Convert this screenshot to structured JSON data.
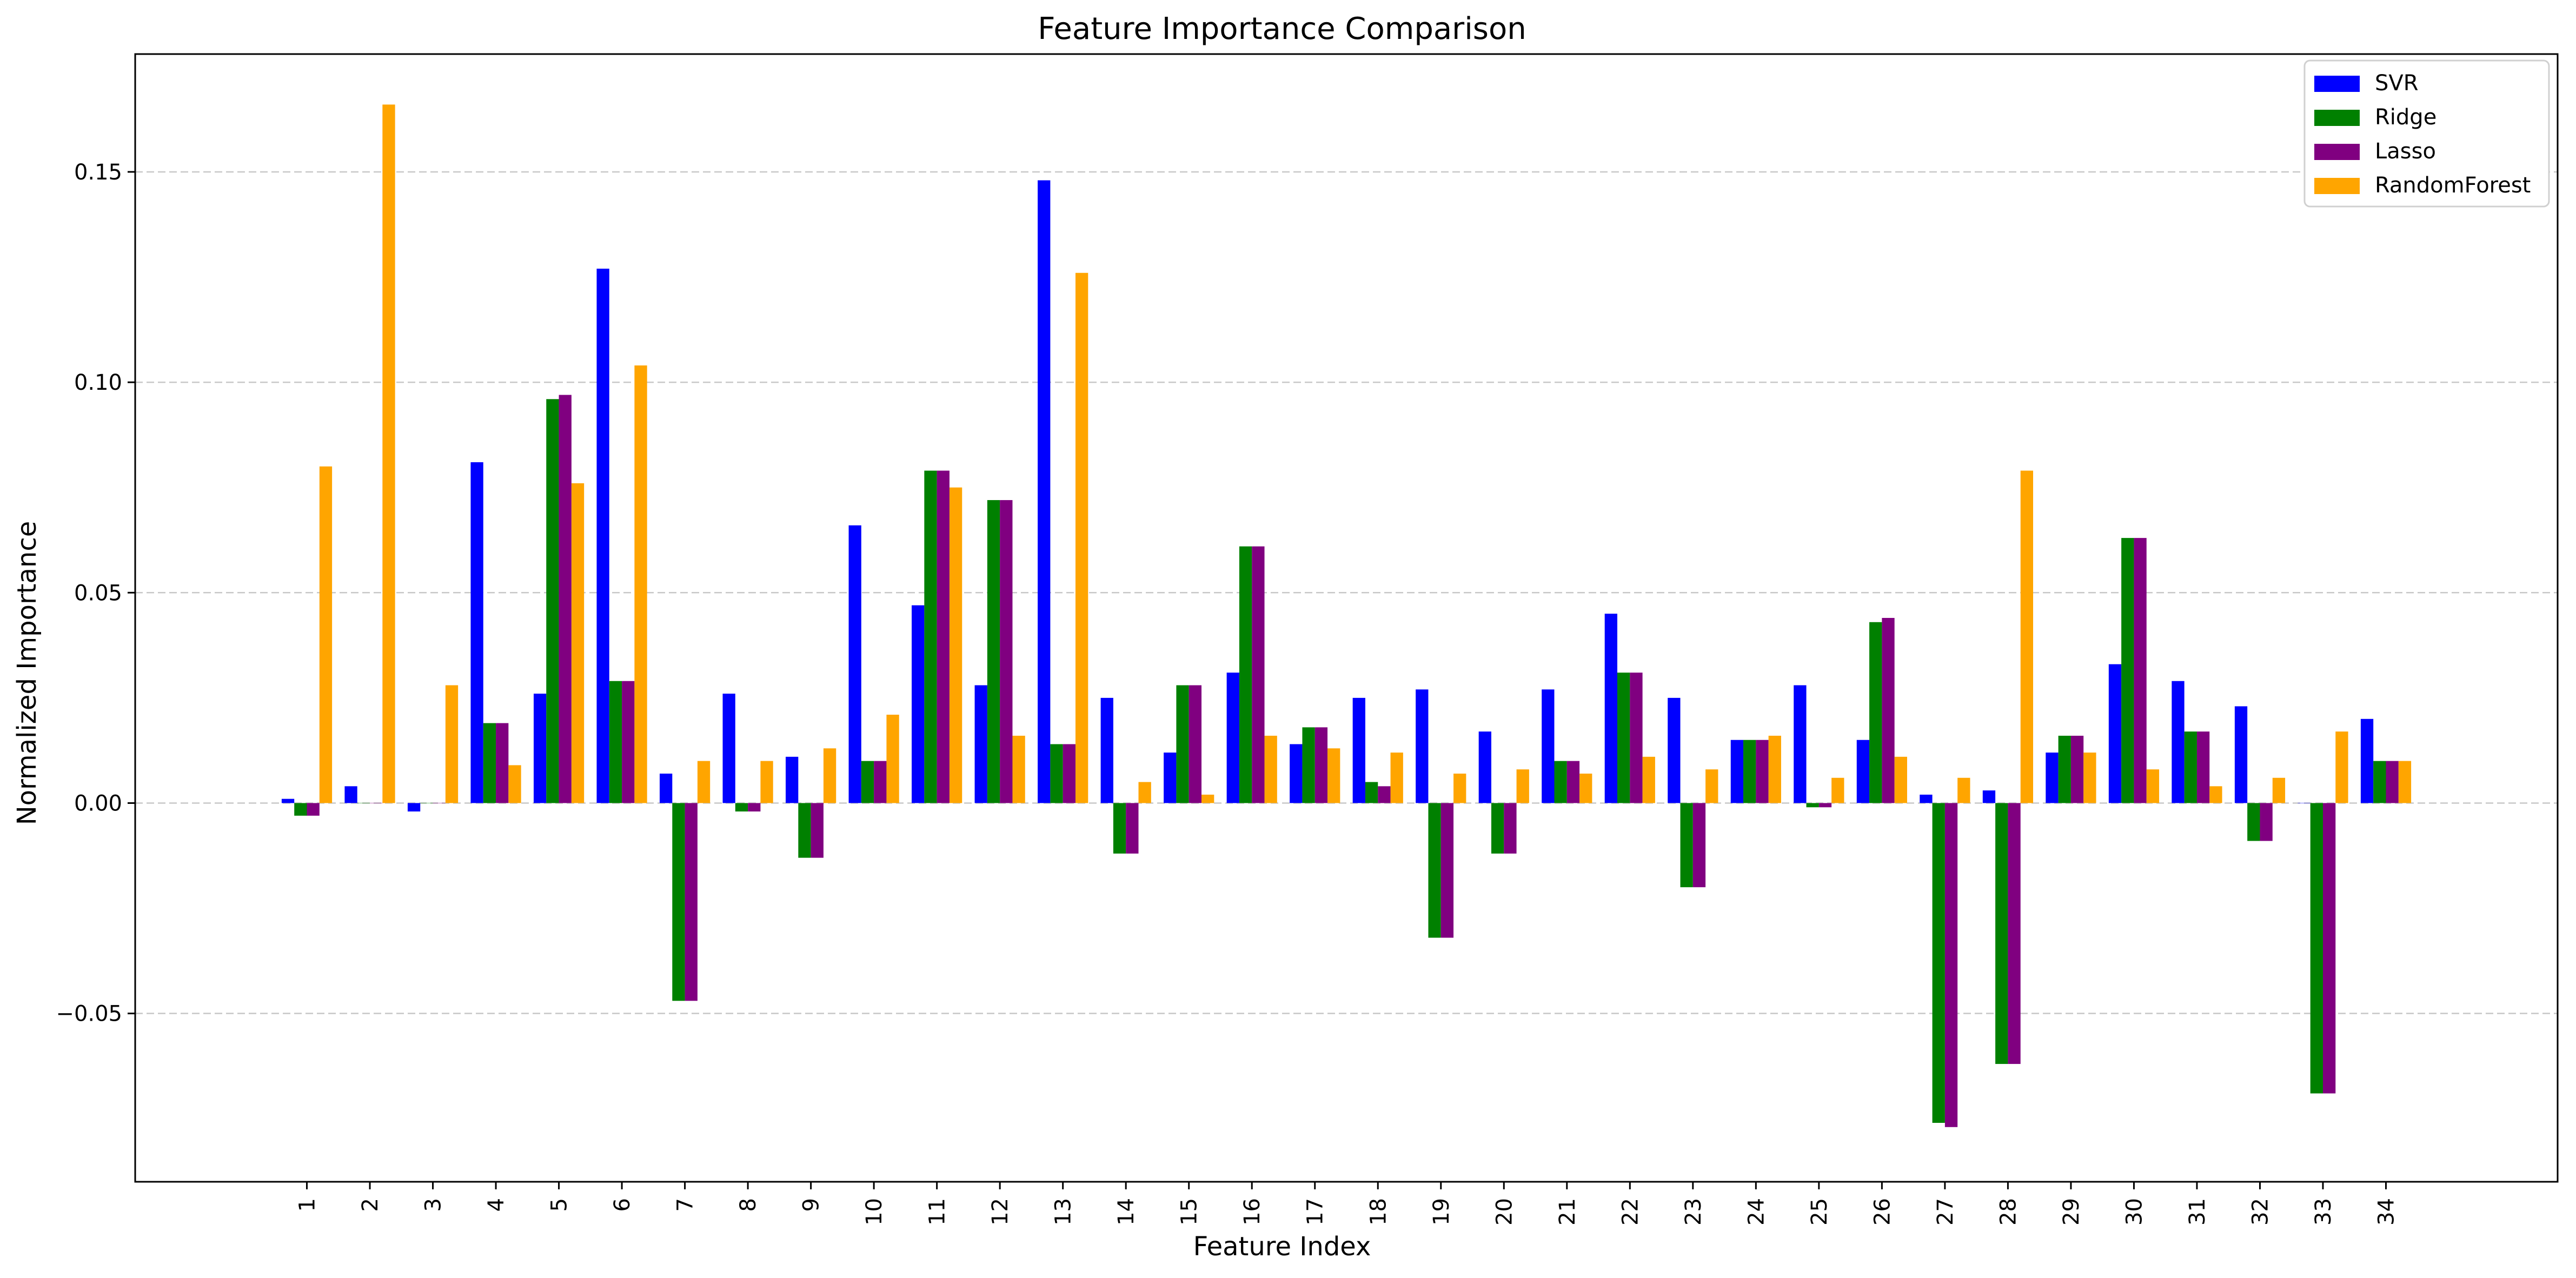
{
  "chart_data": {
    "type": "bar",
    "title": "Feature Importance Comparison",
    "xlabel": "Feature Index",
    "ylabel": "Normalized Importance",
    "ylim": [
      -0.09,
      0.178
    ],
    "yticks": [
      -0.05,
      0.0,
      0.05,
      0.1,
      0.15
    ],
    "ytick_labels": [
      "−0.05",
      "0.00",
      "0.05",
      "0.10",
      "0.15"
    ],
    "grid": "horizontal dashed",
    "legend_position": "top-right",
    "categories": [
      "1",
      "2",
      "3",
      "4",
      "5",
      "6",
      "7",
      "8",
      "9",
      "10",
      "11",
      "12",
      "13",
      "14",
      "15",
      "16",
      "17",
      "18",
      "19",
      "20",
      "21",
      "22",
      "23",
      "24",
      "25",
      "26",
      "27",
      "28",
      "29",
      "30",
      "31",
      "32",
      "33",
      "34"
    ],
    "series": [
      {
        "name": "SVR",
        "color": "#0000ff",
        "values": [
          0.001,
          0.004,
          -0.002,
          0.081,
          0.026,
          0.127,
          0.007,
          0.026,
          0.011,
          0.066,
          0.047,
          0.028,
          0.148,
          0.025,
          0.012,
          0.031,
          0.014,
          0.025,
          0.027,
          0.017,
          0.027,
          0.045,
          0.025,
          0.015,
          0.028,
          0.015,
          0.002,
          0.003,
          0.012,
          0.033,
          0.029,
          0.023,
          0.0,
          0.02
        ]
      },
      {
        "name": "Ridge",
        "color": "#008000",
        "values": [
          -0.003,
          0.0,
          0.0,
          0.019,
          0.096,
          0.029,
          -0.047,
          -0.002,
          -0.013,
          0.01,
          0.079,
          0.072,
          0.014,
          -0.012,
          0.028,
          0.061,
          0.018,
          0.005,
          -0.032,
          -0.012,
          0.01,
          0.031,
          -0.02,
          0.015,
          -0.001,
          0.043,
          -0.076,
          -0.062,
          0.016,
          0.063,
          0.017,
          -0.009,
          -0.069,
          0.01
        ]
      },
      {
        "name": "Lasso",
        "color": "#800080",
        "values": [
          -0.003,
          0.0,
          0.0,
          0.019,
          0.097,
          0.029,
          -0.047,
          -0.002,
          -0.013,
          0.01,
          0.079,
          0.072,
          0.014,
          -0.012,
          0.028,
          0.061,
          0.018,
          0.004,
          -0.032,
          -0.012,
          0.01,
          0.031,
          -0.02,
          0.015,
          -0.001,
          0.044,
          -0.077,
          -0.062,
          0.016,
          0.063,
          0.017,
          -0.009,
          -0.069,
          0.01
        ]
      },
      {
        "name": "RandomForest",
        "color": "#ffa500",
        "values": [
          0.08,
          0.166,
          0.028,
          0.009,
          0.076,
          0.104,
          0.01,
          0.01,
          0.013,
          0.021,
          0.075,
          0.016,
          0.126,
          0.005,
          0.002,
          0.016,
          0.013,
          0.012,
          0.007,
          0.008,
          0.007,
          0.011,
          0.008,
          0.016,
          0.006,
          0.011,
          0.006,
          0.079,
          0.012,
          0.008,
          0.004,
          0.006,
          0.017,
          0.01
        ]
      }
    ]
  }
}
